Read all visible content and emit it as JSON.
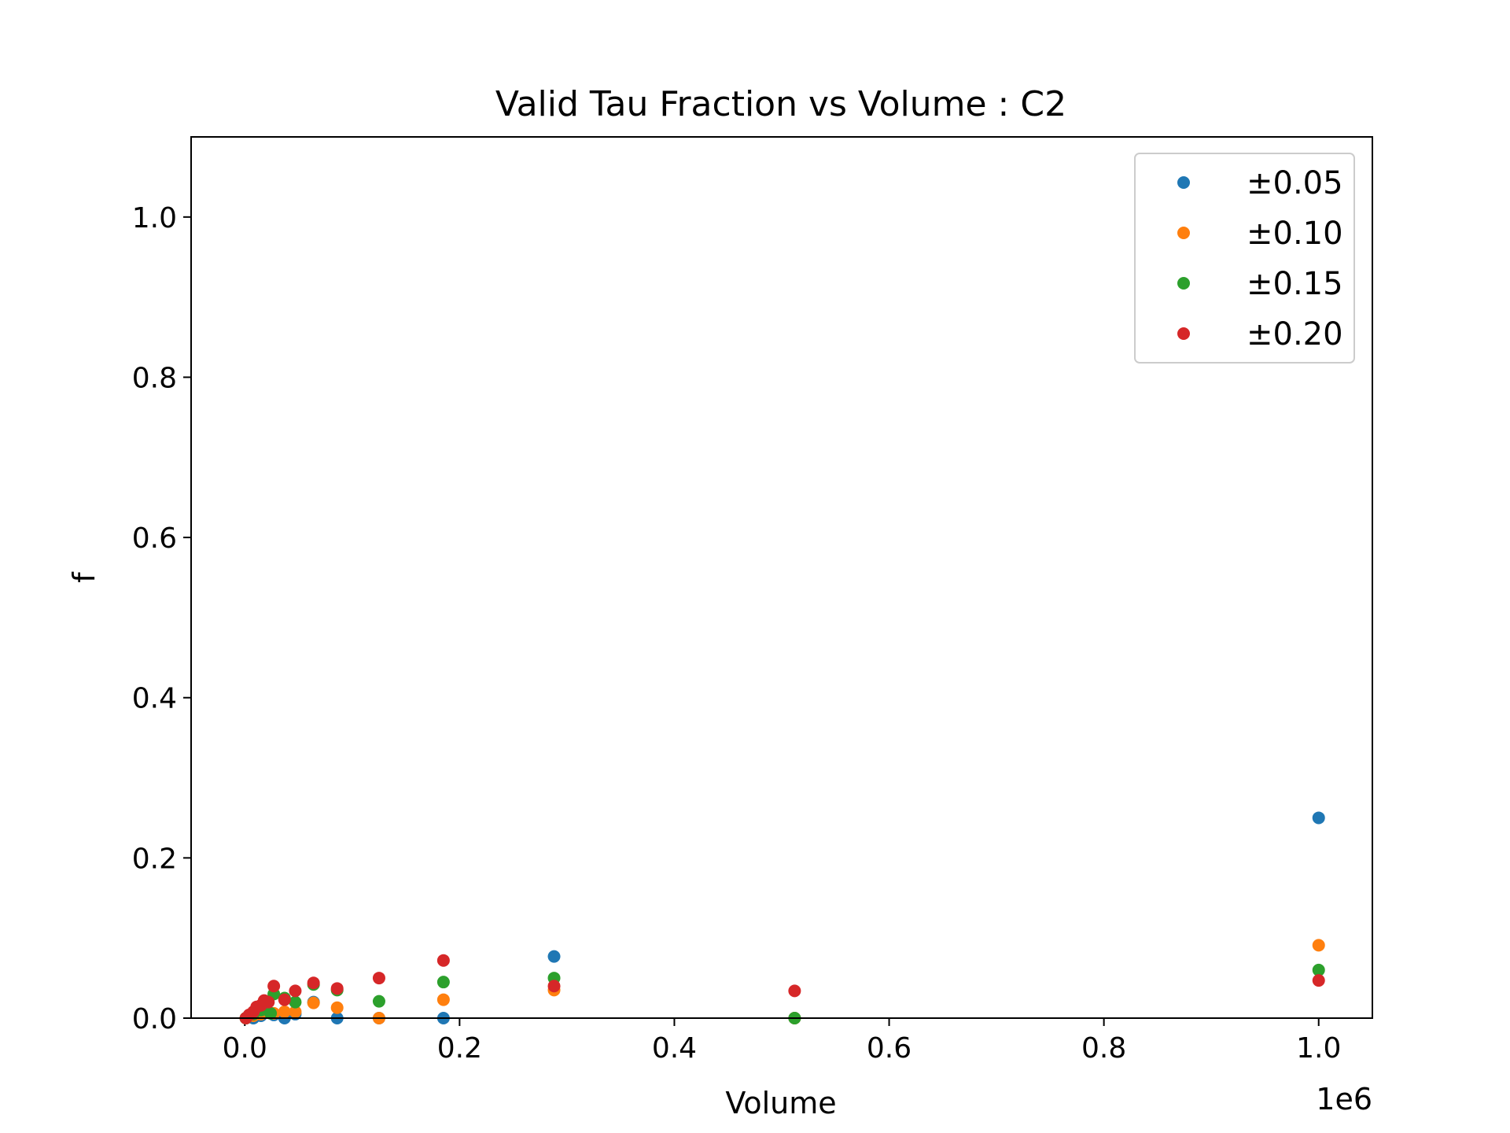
{
  "chart_data": {
    "type": "scatter",
    "title": "Valid Tau Fraction vs Volume : C2",
    "xlabel": "Volume",
    "ylabel": "f",
    "x_offset_text": "1e6",
    "xlim": [
      -0.05,
      1.05
    ],
    "ylim": [
      0,
      1.1
    ],
    "x_ticks": [
      0.0,
      0.2,
      0.4,
      0.6,
      0.8,
      1.0
    ],
    "x_tick_labels": [
      "0.0",
      "0.2",
      "0.4",
      "0.6",
      "0.8",
      "1.0"
    ],
    "y_ticks": [
      0.0,
      0.2,
      0.4,
      0.6,
      0.8,
      1.0
    ],
    "y_tick_labels": [
      "0.0",
      "0.2",
      "0.4",
      "0.6",
      "0.8",
      "1.0"
    ],
    "grid": false,
    "legend_position": "top-right",
    "series": [
      {
        "name": "±0.05",
        "color": "#1f77b4",
        "points": [
          [
            0.001,
            0.0
          ],
          [
            0.008,
            0.0
          ],
          [
            0.015,
            0.003
          ],
          [
            0.027,
            0.004
          ],
          [
            0.037,
            0.0
          ],
          [
            0.047,
            0.005
          ],
          [
            0.064,
            0.02
          ],
          [
            0.086,
            0.0
          ],
          [
            0.125,
            0.0
          ],
          [
            0.185,
            0.0
          ],
          [
            0.288,
            0.077
          ],
          [
            0.512,
            0.0
          ],
          [
            1.0,
            0.25
          ]
        ]
      },
      {
        "name": "±0.10",
        "color": "#ff7f0e",
        "points": [
          [
            0.001,
            0.0
          ],
          [
            0.008,
            0.003
          ],
          [
            0.015,
            0.005
          ],
          [
            0.027,
            0.006
          ],
          [
            0.037,
            0.008
          ],
          [
            0.047,
            0.008
          ],
          [
            0.064,
            0.019
          ],
          [
            0.086,
            0.013
          ],
          [
            0.125,
            0.0
          ],
          [
            0.185,
            0.023
          ],
          [
            0.288,
            0.035
          ],
          [
            0.512,
            0.0
          ],
          [
            1.0,
            0.091
          ]
        ]
      },
      {
        "name": "±0.15",
        "color": "#2ca02c",
        "points": [
          [
            0.001,
            0.0
          ],
          [
            0.008,
            0.005
          ],
          [
            0.015,
            0.01
          ],
          [
            0.024,
            0.006
          ],
          [
            0.027,
            0.03
          ],
          [
            0.037,
            0.025
          ],
          [
            0.047,
            0.02
          ],
          [
            0.064,
            0.042
          ],
          [
            0.086,
            0.035
          ],
          [
            0.125,
            0.021
          ],
          [
            0.185,
            0.045
          ],
          [
            0.288,
            0.05
          ],
          [
            0.512,
            0.0
          ],
          [
            1.0,
            0.06
          ]
        ]
      },
      {
        "name": "±0.20",
        "color": "#d62728",
        "points": [
          [
            0.001,
            0.0
          ],
          [
            0.004,
            0.004
          ],
          [
            0.008,
            0.008
          ],
          [
            0.011,
            0.014
          ],
          [
            0.015,
            0.016
          ],
          [
            0.018,
            0.022
          ],
          [
            0.022,
            0.02
          ],
          [
            0.027,
            0.04
          ],
          [
            0.037,
            0.023
          ],
          [
            0.047,
            0.034
          ],
          [
            0.064,
            0.044
          ],
          [
            0.086,
            0.037
          ],
          [
            0.125,
            0.05
          ],
          [
            0.185,
            0.072
          ],
          [
            0.288,
            0.04
          ],
          [
            0.512,
            0.034
          ],
          [
            1.0,
            0.047
          ]
        ]
      }
    ]
  }
}
